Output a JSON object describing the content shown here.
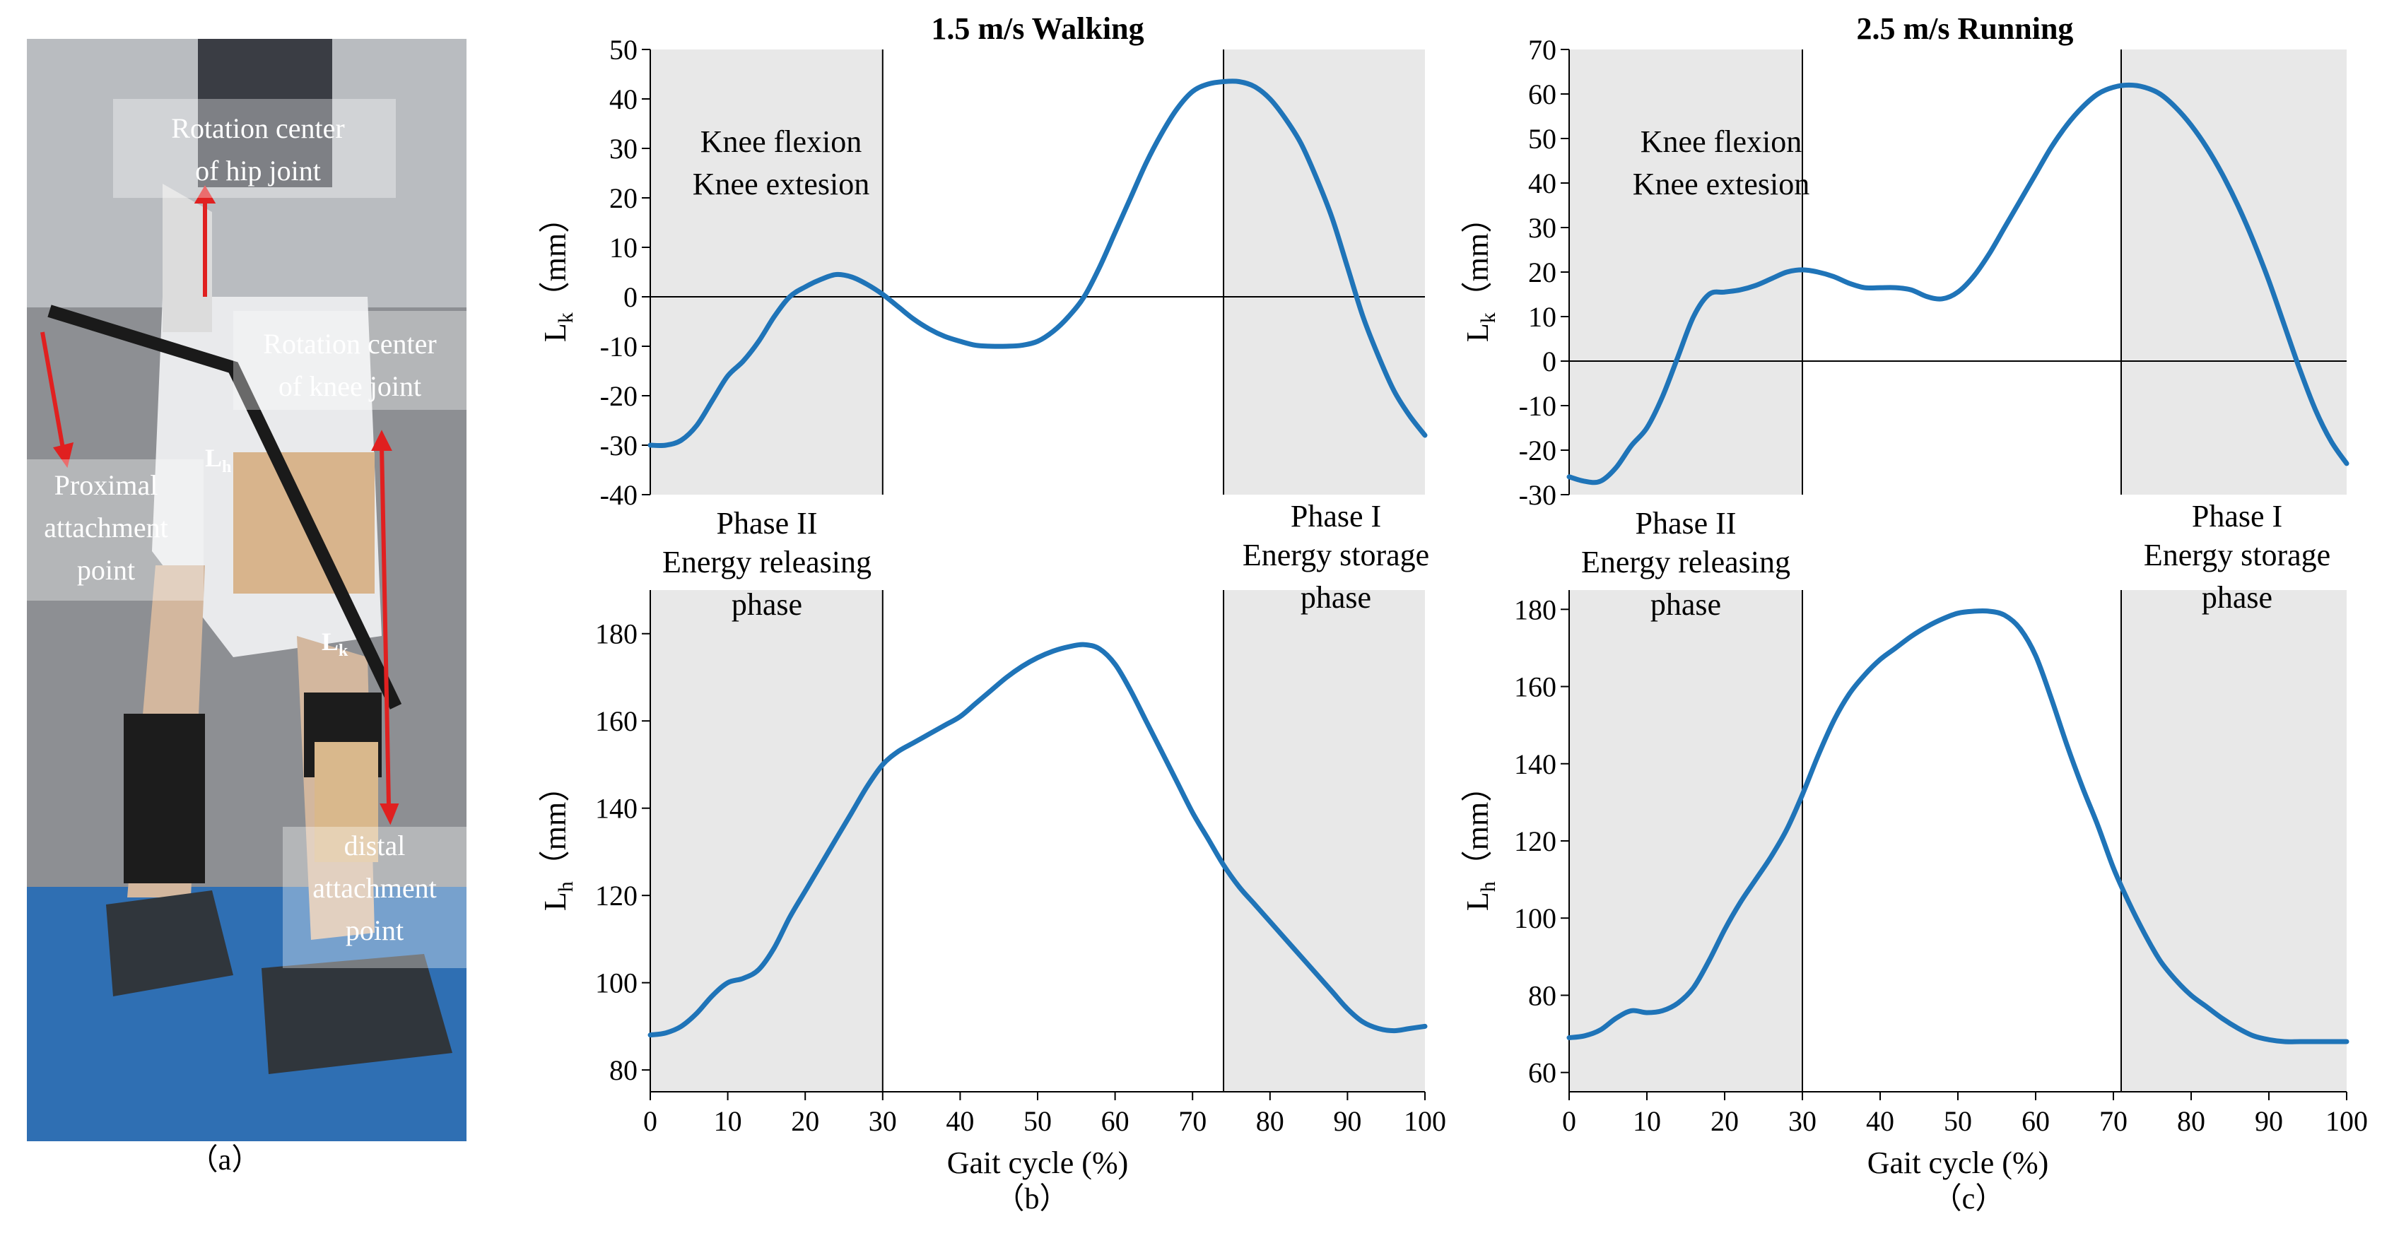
{
  "panel_a": {
    "label": "（a）",
    "annotations": {
      "hip": "Rotation center of hip joint",
      "knee": "Rotation center of knee joint",
      "proximal": "Proximal attachment point",
      "distal": "distal attachment point",
      "lh": "Lh",
      "lk": "Lk"
    }
  },
  "panel_b_label": "（b）",
  "panel_c_label": "（c）",
  "colors": {
    "line": "#1f74b8",
    "shade": "#e8e8e8",
    "axis": "#000000"
  },
  "chart_data": [
    {
      "id": "walk_lk",
      "type": "line",
      "title": "1.5 m/s Walking",
      "xlabel": "",
      "ylabel": "Lk（mm）",
      "xlim": [
        0,
        100
      ],
      "ylim": [
        -40,
        50
      ],
      "yticks": [
        -40,
        -30,
        -20,
        -10,
        0,
        10,
        20,
        30,
        40,
        50
      ],
      "shaded_regions": [
        [
          0,
          30
        ],
        [
          74,
          100
        ]
      ],
      "vlines": [
        30,
        74
      ],
      "hline": 0,
      "annotations": [
        "Knee flexion",
        "Knee extesion"
      ],
      "series": [
        {
          "name": "Lk",
          "x": [
            0,
            2,
            4,
            6,
            8,
            10,
            12,
            14,
            16,
            18,
            20,
            22,
            24,
            26,
            28,
            30,
            32,
            34,
            36,
            38,
            40,
            42,
            44,
            46,
            48,
            50,
            52,
            54,
            56,
            58,
            60,
            62,
            64,
            66,
            68,
            70,
            72,
            74,
            76,
            78,
            80,
            82,
            84,
            86,
            88,
            90,
            92,
            94,
            96,
            98,
            100
          ],
          "y": [
            -30,
            -30,
            -29,
            -26,
            -21,
            -16,
            -13,
            -9,
            -4,
            0,
            2,
            3.5,
            4.5,
            4,
            2.5,
            0.5,
            -2,
            -4.5,
            -6.5,
            -8,
            -9,
            -9.8,
            -10,
            -10,
            -9.8,
            -9,
            -7,
            -4,
            0,
            6,
            13,
            20,
            27,
            33,
            38,
            41.5,
            43,
            43.5,
            43.5,
            42.5,
            40,
            36,
            31,
            24,
            16,
            6,
            -4,
            -12,
            -19,
            -24,
            -28
          ]
        }
      ]
    },
    {
      "id": "walk_lh",
      "type": "line",
      "title": "",
      "xlabel": "Gait cycle (%)",
      "ylabel": "Lh（mm）",
      "xlim": [
        0,
        100
      ],
      "ylim": [
        75,
        190
      ],
      "yticks": [
        80,
        100,
        120,
        140,
        160,
        180
      ],
      "xticks": [
        0,
        10,
        20,
        30,
        40,
        50,
        60,
        70,
        80,
        90,
        100
      ],
      "shaded_regions": [
        [
          0,
          30
        ],
        [
          74,
          100
        ]
      ],
      "vlines": [
        30,
        74
      ],
      "annotations": [
        "Phase II",
        "Energy releasing",
        "phase",
        "Phase I",
        "Energy storage",
        "phase"
      ],
      "series": [
        {
          "name": "Lh",
          "x": [
            0,
            2,
            4,
            6,
            8,
            10,
            12,
            14,
            16,
            18,
            20,
            22,
            24,
            26,
            28,
            30,
            32,
            34,
            36,
            38,
            40,
            42,
            44,
            46,
            48,
            50,
            52,
            54,
            56,
            58,
            60,
            62,
            64,
            66,
            68,
            70,
            72,
            74,
            76,
            78,
            80,
            82,
            84,
            86,
            88,
            90,
            92,
            94,
            96,
            98,
            100
          ],
          "y": [
            88,
            88.5,
            90,
            93,
            97,
            100,
            101,
            103,
            108,
            115,
            121,
            127,
            133,
            139,
            145,
            150,
            153,
            155,
            157,
            159,
            161,
            164,
            167,
            170,
            172.5,
            174.5,
            176,
            177,
            177.5,
            176.5,
            173,
            167,
            160,
            153,
            146,
            139,
            133,
            127,
            122,
            118,
            114,
            110,
            106,
            102,
            98,
            94,
            91,
            89.5,
            89,
            89.5,
            90
          ]
        }
      ]
    },
    {
      "id": "run_lk",
      "type": "line",
      "title": "2.5 m/s Running",
      "xlabel": "",
      "ylabel": "Lk（mm）",
      "xlim": [
        0,
        100
      ],
      "ylim": [
        -30,
        70
      ],
      "yticks": [
        -30,
        -20,
        -10,
        0,
        10,
        20,
        30,
        40,
        50,
        60,
        70
      ],
      "shaded_regions": [
        [
          0,
          30
        ],
        [
          71,
          100
        ]
      ],
      "vlines": [
        30,
        71
      ],
      "hline": 0,
      "annotations": [
        "Knee flexion",
        "Knee extesion"
      ],
      "series": [
        {
          "name": "Lk",
          "x": [
            0,
            2,
            4,
            6,
            8,
            10,
            12,
            14,
            16,
            18,
            20,
            22,
            24,
            26,
            28,
            30,
            32,
            34,
            36,
            38,
            40,
            42,
            44,
            46,
            48,
            50,
            52,
            54,
            56,
            58,
            60,
            62,
            64,
            66,
            68,
            70,
            72,
            74,
            76,
            78,
            80,
            82,
            84,
            86,
            88,
            90,
            92,
            94,
            96,
            98,
            100
          ],
          "y": [
            -26,
            -27,
            -27,
            -24,
            -19,
            -15,
            -8,
            1,
            10,
            15,
            15.5,
            16,
            17,
            18.5,
            20,
            20.5,
            20,
            19,
            17.5,
            16.5,
            16.5,
            16.5,
            16,
            14.5,
            14,
            15.5,
            19,
            24,
            30,
            36,
            42,
            48,
            53,
            57,
            60,
            61.5,
            62,
            61.5,
            60,
            57,
            53,
            48,
            42,
            35,
            27,
            18,
            8,
            -2,
            -11,
            -18,
            -23
          ]
        }
      ]
    },
    {
      "id": "run_lh",
      "type": "line",
      "title": "",
      "xlabel": "Gait cycle (%)",
      "ylabel": "Lh（mm）",
      "xlim": [
        0,
        100
      ],
      "ylim": [
        55,
        185
      ],
      "yticks": [
        60,
        80,
        100,
        120,
        140,
        160,
        180
      ],
      "xticks": [
        0,
        10,
        20,
        30,
        40,
        50,
        60,
        70,
        80,
        90,
        100
      ],
      "shaded_regions": [
        [
          0,
          30
        ],
        [
          71,
          100
        ]
      ],
      "vlines": [
        30,
        71
      ],
      "annotations": [
        "Phase II",
        "Energy releasing",
        "phase",
        "Phase I",
        "Energy storage",
        "phase"
      ],
      "series": [
        {
          "name": "Lh",
          "x": [
            0,
            2,
            4,
            6,
            8,
            10,
            12,
            14,
            16,
            18,
            20,
            22,
            24,
            26,
            28,
            30,
            32,
            34,
            36,
            38,
            40,
            42,
            44,
            46,
            48,
            50,
            52,
            54,
            56,
            58,
            60,
            62,
            64,
            66,
            68,
            70,
            72,
            74,
            76,
            78,
            80,
            82,
            84,
            86,
            88,
            90,
            92,
            94,
            96,
            98,
            100
          ],
          "y": [
            69,
            69.5,
            71,
            74,
            76,
            75.5,
            76,
            78,
            82,
            89,
            97,
            104,
            110,
            116,
            123,
            132,
            142,
            151,
            158,
            163,
            167,
            170,
            173,
            175.5,
            177.5,
            179,
            179.5,
            179.5,
            178.5,
            175,
            168,
            157,
            145,
            134,
            124,
            113,
            104,
            96,
            89,
            84,
            80,
            77,
            74,
            71.5,
            69.5,
            68.5,
            68,
            68,
            68,
            68,
            68
          ]
        }
      ]
    }
  ]
}
